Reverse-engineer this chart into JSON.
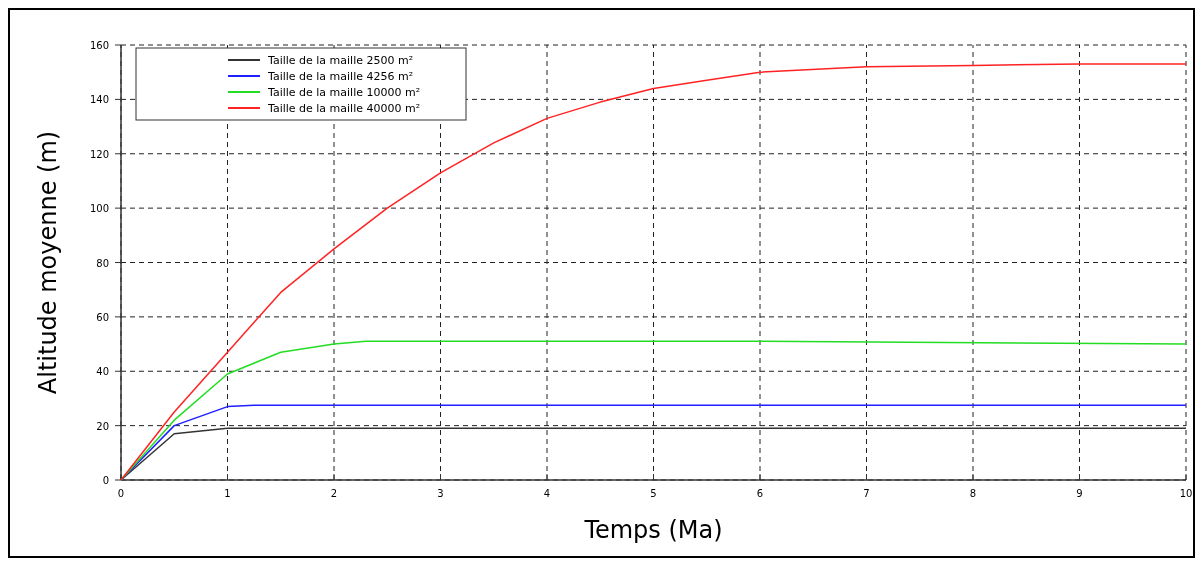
{
  "chart_data": {
    "type": "line",
    "xlabel": "Temps (Ma)",
    "ylabel": "Altitude moyenne (m)",
    "xlim": [
      0,
      10
    ],
    "ylim": [
      0,
      160
    ],
    "xticks": [
      0,
      1,
      2,
      3,
      4,
      5,
      6,
      7,
      8,
      9,
      10
    ],
    "yticks": [
      0,
      20,
      40,
      60,
      80,
      100,
      120,
      140,
      160
    ],
    "grid": true,
    "legend": "top left",
    "line_style": "solid",
    "marker": "none",
    "series": [
      {
        "name": "Taille de la maille 2500 m²",
        "color": "#333333",
        "x": [
          0,
          0.5,
          0.75,
          1,
          1.5,
          2,
          10
        ],
        "values": [
          0,
          17,
          18,
          19,
          19,
          19,
          19
        ]
      },
      {
        "name": "Taille de la maille 4256 m²",
        "color": "#1f1fff",
        "x": [
          0,
          0.5,
          1,
          1.25,
          2,
          10
        ],
        "values": [
          0,
          20,
          27,
          27.5,
          27.5,
          27.5
        ]
      },
      {
        "name": "Taille de la maille 10000 m²",
        "color": "#22dd22",
        "x": [
          0,
          0.5,
          1,
          1.5,
          2,
          2.3,
          6,
          10
        ],
        "values": [
          0,
          22,
          39,
          47,
          50,
          51,
          51,
          50
        ]
      },
      {
        "name": "Taille de la maille 40000 m²",
        "color": "#ff2222",
        "x": [
          0,
          0.5,
          1,
          1.5,
          2,
          2.5,
          3,
          3.5,
          4,
          4.5,
          5,
          5.5,
          6,
          7,
          8,
          9,
          10
        ],
        "values": [
          0,
          25,
          47,
          69,
          85,
          100,
          113,
          124,
          133,
          139,
          144,
          147,
          150,
          152,
          152.5,
          153,
          153
        ]
      }
    ]
  }
}
